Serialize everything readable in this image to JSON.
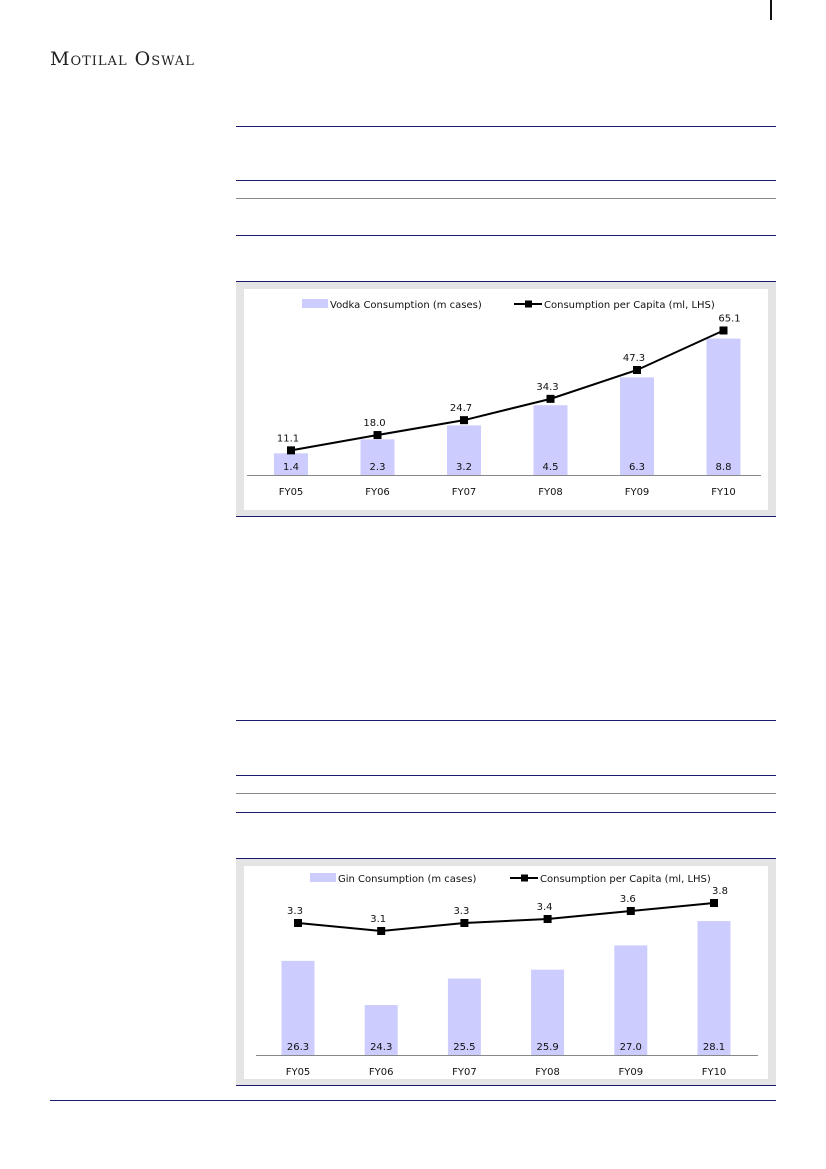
{
  "header": {
    "logo_text": "Motilal Oswal"
  },
  "chart_data": [
    {
      "type": "bar+line",
      "categories": [
        "FY05",
        "FY06",
        "FY07",
        "FY08",
        "FY09",
        "FY10"
      ],
      "series": [
        {
          "name": "Vodka Consumption (m cases)",
          "type": "bar",
          "values": [
            1.4,
            2.3,
            3.2,
            4.5,
            6.3,
            8.8
          ],
          "color": "#ccccff"
        },
        {
          "name": "Consumption per Capita (ml, LHS)",
          "type": "line",
          "values": [
            11.1,
            18.0,
            24.7,
            34.3,
            47.3,
            65.1
          ],
          "color": "#000000"
        }
      ],
      "legend": "top",
      "grid": false
    },
    {
      "type": "bar+line",
      "categories": [
        "FY05",
        "FY06",
        "FY07",
        "FY08",
        "FY09",
        "FY10"
      ],
      "series": [
        {
          "name": "Gin Consumption (m cases)",
          "type": "bar",
          "values": [
            26.3,
            24.3,
            25.5,
            25.9,
            27.0,
            28.1
          ],
          "color": "#ccccff"
        },
        {
          "name": "Consumption per Capita (ml, LHS)",
          "type": "line",
          "values": [
            3.3,
            3.1,
            3.3,
            3.4,
            3.6,
            3.8
          ],
          "color": "#000000"
        }
      ],
      "legend": "top",
      "grid": false
    }
  ]
}
